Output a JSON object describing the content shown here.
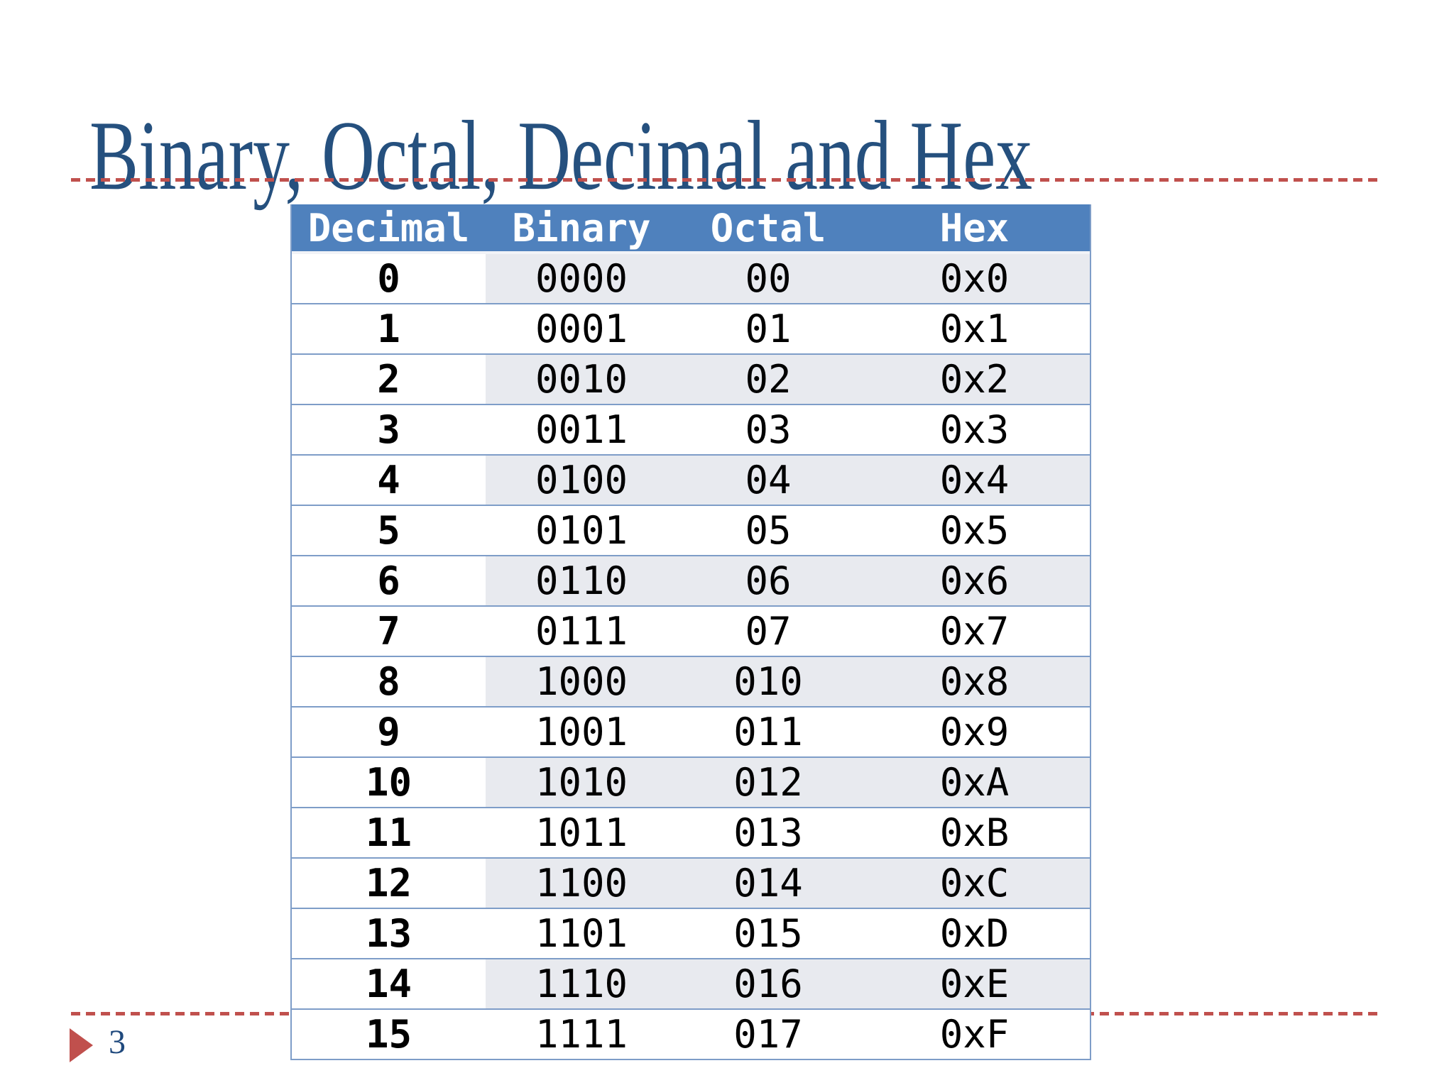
{
  "slide": {
    "title": "Binary, Octal, Decimal and Hex",
    "page_number": "3"
  },
  "table": {
    "columns": [
      "Decimal",
      "Binary",
      "Octal",
      "Hex"
    ],
    "rows": [
      {
        "decimal": "0",
        "binary": "0000",
        "octal": "00",
        "hex": "0x0"
      },
      {
        "decimal": "1",
        "binary": "0001",
        "octal": "01",
        "hex": "0x1"
      },
      {
        "decimal": "2",
        "binary": "0010",
        "octal": "02",
        "hex": "0x2"
      },
      {
        "decimal": "3",
        "binary": "0011",
        "octal": "03",
        "hex": "0x3"
      },
      {
        "decimal": "4",
        "binary": "0100",
        "octal": "04",
        "hex": "0x4"
      },
      {
        "decimal": "5",
        "binary": "0101",
        "octal": "05",
        "hex": "0x5"
      },
      {
        "decimal": "6",
        "binary": "0110",
        "octal": "06",
        "hex": "0x6"
      },
      {
        "decimal": "7",
        "binary": "0111",
        "octal": "07",
        "hex": "0x7"
      },
      {
        "decimal": "8",
        "binary": "1000",
        "octal": "010",
        "hex": "0x8"
      },
      {
        "decimal": "9",
        "binary": "1001",
        "octal": "011",
        "hex": "0x9"
      },
      {
        "decimal": "10",
        "binary": "1010",
        "octal": "012",
        "hex": "0xA"
      },
      {
        "decimal": "11",
        "binary": "1011",
        "octal": "013",
        "hex": "0xB"
      },
      {
        "decimal": "12",
        "binary": "1100",
        "octal": "014",
        "hex": "0xC"
      },
      {
        "decimal": "13",
        "binary": "1101",
        "octal": "015",
        "hex": "0xD"
      },
      {
        "decimal": "14",
        "binary": "1110",
        "octal": "016",
        "hex": "0xE"
      },
      {
        "decimal": "15",
        "binary": "1111",
        "octal": "017",
        "hex": "0xF"
      }
    ]
  },
  "colors": {
    "header_bg": "#4F81BD",
    "band_bg": "#E8EAEF",
    "row_line": "#7E9DC8",
    "table_border": "#7E9DC8",
    "title": "#25507E",
    "dash_red": "#C0504D",
    "accent_red": "#C0504D",
    "page_number": "#1F497D"
  }
}
